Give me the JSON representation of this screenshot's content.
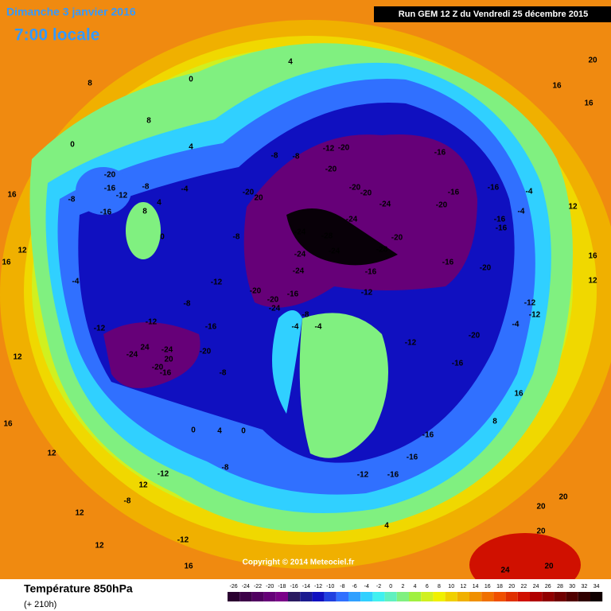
{
  "header": {
    "title": "Dimanche 3 janvier 2016",
    "subtitle": "7:00 locale",
    "run": "Run GEM 12 Z du Vendredi 25 décembre 2015"
  },
  "footer": {
    "title": "Température 850hPa",
    "lead": "(+ 210h)",
    "copyright": "Copyright © 2014 Meteociel.fr"
  },
  "scale": {
    "ticks": [
      -26,
      -24,
      -22,
      -20,
      -18,
      -16,
      -14,
      -12,
      -10,
      -8,
      -6,
      -4,
      -2,
      0,
      2,
      4,
      6,
      8,
      10,
      12,
      14,
      16,
      18,
      20,
      22,
      24,
      26,
      28,
      30,
      32,
      34
    ],
    "colors": [
      "#2a0030",
      "#3c0048",
      "#500060",
      "#660078",
      "#7a0088",
      "#2a1a60",
      "#1a1a90",
      "#1010c0",
      "#2040e0",
      "#3070ff",
      "#30a0ff",
      "#30d0ff",
      "#40f0f0",
      "#60f0c0",
      "#80f080",
      "#a0f040",
      "#d0f020",
      "#f0f000",
      "#f0d000",
      "#f0b000",
      "#f09000",
      "#f07000",
      "#f05000",
      "#e03000",
      "#d01000",
      "#b00000",
      "#900000",
      "#700000",
      "#500000",
      "#300000",
      "#100000"
    ]
  },
  "map_labels": [
    "0",
    "4",
    "8",
    "8",
    "4",
    "0",
    "-20",
    "-16",
    "-12",
    "-8",
    "-16",
    "-8",
    "8",
    "4",
    "0",
    "-4",
    "16",
    "16",
    "12",
    "-4",
    "-12",
    "-12",
    "-24",
    "24",
    "-24",
    "-20",
    "20",
    "-16",
    "-20",
    "-16",
    "-8",
    "-8",
    "-12",
    "-8",
    "-20",
    "20",
    "-8",
    "-8",
    "-12",
    "-20",
    "-20",
    "-20",
    "-20",
    "-24",
    "-24",
    "-24",
    "-28",
    "-24",
    "-24",
    "-24",
    "-28",
    "-20",
    "-16",
    "-16",
    "-16",
    "-20",
    "-16",
    "-16",
    "-16",
    "-16",
    "-20",
    "-20",
    "-20",
    "-24",
    "-16",
    "-12",
    "-4",
    "-4",
    "-8",
    "-12",
    "-20",
    "-16",
    "-16",
    "-16",
    "-12",
    "-16",
    "-4",
    "-12",
    "-12",
    "-4",
    "-4",
    "0",
    "4",
    "0",
    "-8",
    "-12",
    "12",
    "12",
    "12",
    "12",
    "-12",
    "16",
    "4",
    "20",
    "20",
    "20",
    "24",
    "20",
    "16",
    "16",
    "20",
    "12",
    "16",
    "12",
    "12",
    "16",
    "16",
    "8",
    "-8",
    "12"
  ]
}
